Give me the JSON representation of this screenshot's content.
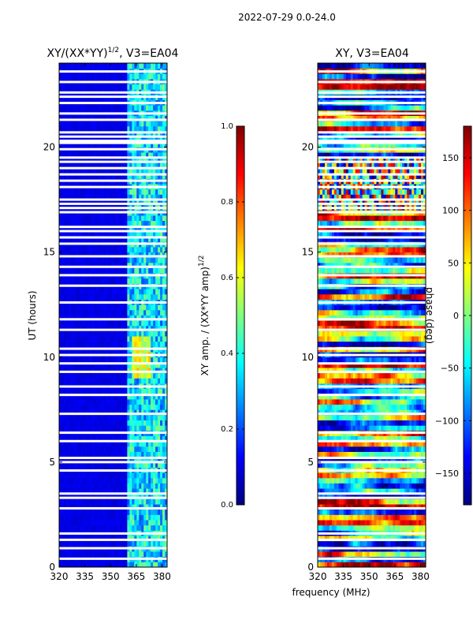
{
  "figure_title": "2022-07-29 0.0-24.0",
  "colors": {
    "background": "#ffffff",
    "colormap": [
      "#00007f",
      "#0000ff",
      "#007fff",
      "#00ffff",
      "#7fff7f",
      "#ffff00",
      "#ff7f00",
      "#ff0000",
      "#7f0000"
    ]
  },
  "chart_data": [
    {
      "type": "heatmap",
      "title_main": "XY/(XX*YY)",
      "title_sup": "1/2",
      "title_rest": ", V3=EA04",
      "xlabel": "",
      "ylabel": "UT (hours)",
      "xlim": [
        320,
        383
      ],
      "ylim": [
        0,
        24
      ],
      "xticks": [
        320,
        335,
        350,
        365,
        380
      ],
      "yticks": [
        0,
        5,
        10,
        15,
        20
      ],
      "colorbar": {
        "label_main": "XY amp. / (XX*YY amp)",
        "label_sup": "1/2",
        "range": [
          0.0,
          1.0
        ],
        "ticks": [
          "0.0",
          "0.2",
          "0.4",
          "0.6",
          "0.8",
          "1.0"
        ]
      },
      "description_values": {
        "background_level": 0.08,
        "active_band_MHz": [
          360,
          383
        ],
        "peak_band_MHz": [
          363,
          373
        ],
        "peak_hours": [
          9,
          11
        ],
        "peak_level": 0.65
      },
      "gap_hours": [
        0.4,
        0.9,
        1.3,
        1.6,
        2.8,
        3.3,
        3.5,
        4.6,
        5.0,
        5.2,
        6.0,
        6.4,
        7.3,
        8.2,
        8.6,
        9.3,
        9.7,
        10.1,
        10.4,
        11.3,
        11.8,
        12.6,
        13.4,
        13.9,
        14.3,
        14.8,
        15.4,
        15.7,
        16.0,
        16.2,
        16.9,
        17.1,
        17.3,
        17.5,
        18.1,
        18.4,
        18.7,
        19.0,
        19.3,
        19.5,
        19.9,
        20.2,
        20.3,
        20.5,
        20.7,
        21.3,
        21.6,
        22.1,
        22.4,
        22.6,
        23.1,
        23.6
      ]
    },
    {
      "type": "heatmap",
      "title_main": "XY, V3=EA04",
      "xlabel": "frequency (MHz)",
      "ylabel": "",
      "xlim": [
        320,
        383
      ],
      "ylim": [
        0,
        24
      ],
      "xticks": [
        320,
        335,
        350,
        365,
        380
      ],
      "yticks": [
        0,
        5,
        10,
        15,
        20
      ],
      "colorbar": {
        "label_main": "phase (deg)",
        "range": [
          -180,
          180
        ],
        "ticks": [
          "−150",
          "−100",
          "−50",
          "0",
          "50",
          "100",
          "150"
        ],
        "tick_values": [
          -150,
          -100,
          -50,
          0,
          50,
          100,
          150
        ]
      },
      "description_values": {
        "phase_range_deg": [
          -180,
          180
        ],
        "noisy_hours": [
          17,
          19.5
        ]
      },
      "gap_hours": [
        0.4,
        0.9,
        1.3,
        1.6,
        2.8,
        3.3,
        3.5,
        4.6,
        5.0,
        5.2,
        6.0,
        6.4,
        7.3,
        8.2,
        8.6,
        9.3,
        9.7,
        10.1,
        10.4,
        11.3,
        11.8,
        12.6,
        13.4,
        13.9,
        14.3,
        14.8,
        15.4,
        15.7,
        16.0,
        16.2,
        16.9,
        17.1,
        17.3,
        17.5,
        18.1,
        18.4,
        18.7,
        19.0,
        19.3,
        19.5,
        19.9,
        20.2,
        20.3,
        20.5,
        20.7,
        21.3,
        21.6,
        22.1,
        22.4,
        22.6,
        23.1,
        23.6
      ]
    }
  ]
}
